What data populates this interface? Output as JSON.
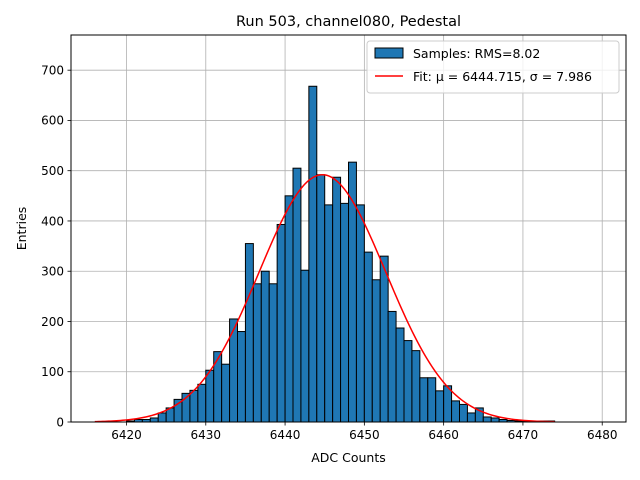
{
  "chart_data": {
    "type": "bar",
    "title": "Run 503, channel080, Pedestal",
    "xlabel": "ADC Counts",
    "ylabel": "Entries",
    "xlim": [
      6413,
      6483
    ],
    "ylim": [
      0,
      770
    ],
    "xticks": [
      6420,
      6430,
      6440,
      6450,
      6460,
      6470,
      6480
    ],
    "yticks": [
      0,
      100,
      200,
      300,
      400,
      500,
      600,
      700
    ],
    "grid": true,
    "legend_position": "top-right",
    "histogram": {
      "name": "Samples: RMS=8.02",
      "color": "#1f77b4",
      "bin_width": 1,
      "bin_starts": [
        6420,
        6421,
        6422,
        6423,
        6424,
        6425,
        6426,
        6427,
        6428,
        6429,
        6430,
        6431,
        6432,
        6433,
        6434,
        6435,
        6436,
        6437,
        6438,
        6439,
        6440,
        6441,
        6442,
        6443,
        6444,
        6445,
        6446,
        6447,
        6448,
        6449,
        6450,
        6451,
        6452,
        6453,
        6454,
        6455,
        6456,
        6457,
        6458,
        6459,
        6460,
        6461,
        6462,
        6463,
        6464,
        6465,
        6466,
        6467,
        6468,
        6469,
        6470,
        6471,
        6472,
        6473
      ],
      "values": [
        2,
        5,
        5,
        8,
        18,
        28,
        45,
        57,
        63,
        75,
        103,
        140,
        115,
        205,
        180,
        355,
        275,
        300,
        275,
        393,
        450,
        505,
        302,
        668,
        492,
        432,
        487,
        435,
        517,
        432,
        338,
        283,
        330,
        220,
        187,
        162,
        142,
        88,
        88,
        62,
        72,
        42,
        35,
        18,
        28,
        10,
        8,
        5,
        3,
        2,
        2,
        2,
        2,
        2
      ]
    },
    "fit": {
      "name": "Fit: μ = 6444.715, σ = 7.986",
      "color": "#ff0000",
      "mu": 6444.715,
      "sigma": 7.986,
      "amplitude": 492,
      "x_range": [
        6416,
        6474
      ]
    }
  }
}
